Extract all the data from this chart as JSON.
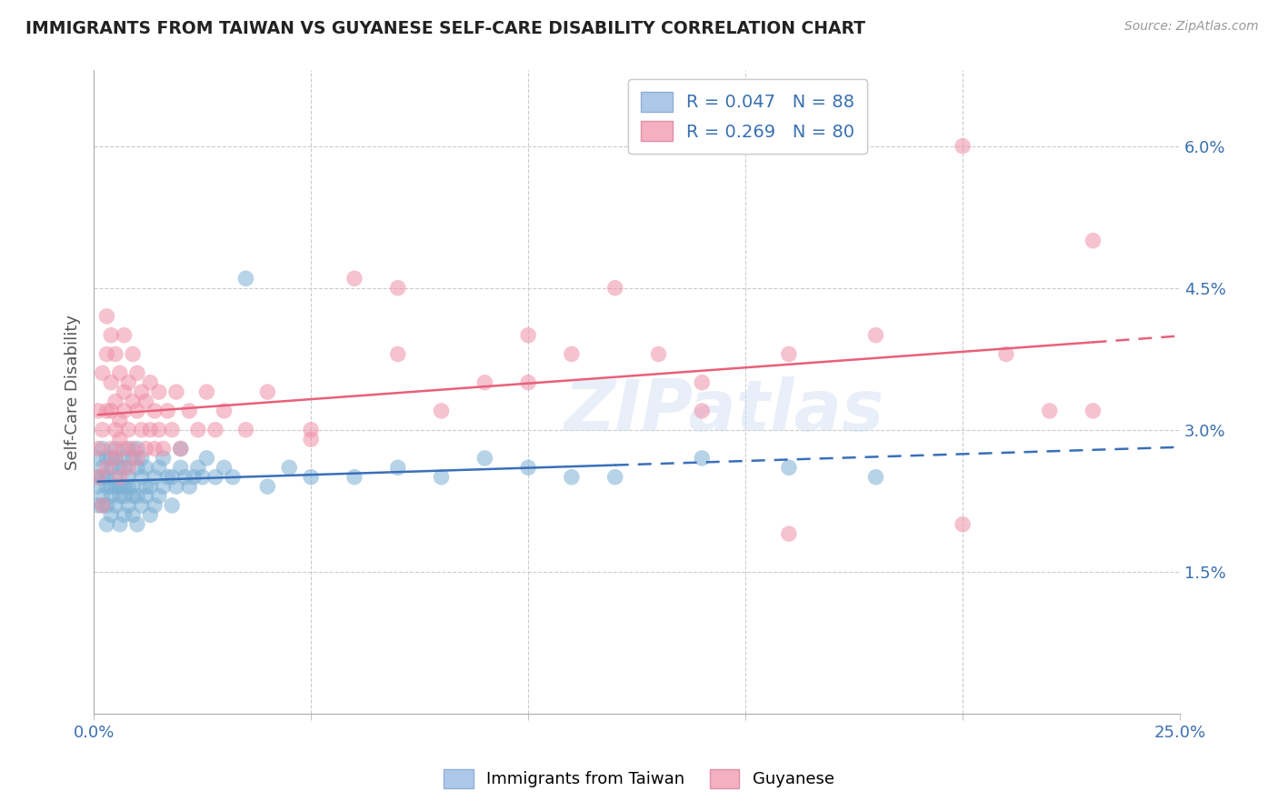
{
  "title": "IMMIGRANTS FROM TAIWAN VS GUYANESE SELF-CARE DISABILITY CORRELATION CHART",
  "source": "Source: ZipAtlas.com",
  "ylabel": "Self-Care Disability",
  "xmin": 0.0,
  "xmax": 0.25,
  "ymin": 0.0,
  "ymax": 0.068,
  "ytick_positions": [
    0.015,
    0.03,
    0.045,
    0.06
  ],
  "ytick_labels": [
    "1.5%",
    "3.0%",
    "4.5%",
    "6.0%"
  ],
  "xtick_positions": [
    0.0,
    0.05,
    0.1,
    0.15,
    0.2,
    0.25
  ],
  "xtick_labels": [
    "0.0%",
    "",
    "",
    "",
    "",
    "25.0%"
  ],
  "blue_scatter_color": "#7bafd4",
  "pink_scatter_color": "#f090a8",
  "blue_line_color": "#3a6fba",
  "pink_line_color": "#e8607a",
  "watermark": "ZIPatlas",
  "taiwan_N": 88,
  "taiwan_R": 0.047,
  "guyanese_N": 80,
  "guyanese_R": 0.269,
  "taiwan_x": [
    0.001,
    0.001,
    0.001,
    0.001,
    0.002,
    0.002,
    0.002,
    0.002,
    0.002,
    0.003,
    0.003,
    0.003,
    0.003,
    0.003,
    0.004,
    0.004,
    0.004,
    0.004,
    0.004,
    0.005,
    0.005,
    0.005,
    0.005,
    0.005,
    0.006,
    0.006,
    0.006,
    0.006,
    0.007,
    0.007,
    0.007,
    0.007,
    0.007,
    0.008,
    0.008,
    0.008,
    0.008,
    0.009,
    0.009,
    0.009,
    0.009,
    0.01,
    0.01,
    0.01,
    0.01,
    0.011,
    0.011,
    0.011,
    0.012,
    0.012,
    0.012,
    0.013,
    0.013,
    0.014,
    0.014,
    0.015,
    0.015,
    0.016,
    0.016,
    0.017,
    0.018,
    0.018,
    0.019,
    0.02,
    0.02,
    0.021,
    0.022,
    0.023,
    0.024,
    0.025,
    0.026,
    0.028,
    0.03,
    0.032,
    0.035,
    0.04,
    0.045,
    0.05,
    0.06,
    0.07,
    0.08,
    0.09,
    0.1,
    0.11,
    0.12,
    0.14,
    0.16,
    0.18
  ],
  "taiwan_y": [
    0.025,
    0.022,
    0.027,
    0.024,
    0.023,
    0.026,
    0.028,
    0.022,
    0.025,
    0.02,
    0.024,
    0.027,
    0.022,
    0.025,
    0.021,
    0.024,
    0.027,
    0.023,
    0.026,
    0.022,
    0.025,
    0.028,
    0.024,
    0.027,
    0.02,
    0.023,
    0.026,
    0.024,
    0.021,
    0.024,
    0.027,
    0.023,
    0.026,
    0.022,
    0.025,
    0.028,
    0.024,
    0.021,
    0.024,
    0.027,
    0.023,
    0.02,
    0.023,
    0.026,
    0.028,
    0.022,
    0.025,
    0.027,
    0.023,
    0.026,
    0.024,
    0.021,
    0.024,
    0.022,
    0.025,
    0.023,
    0.026,
    0.024,
    0.027,
    0.025,
    0.022,
    0.025,
    0.024,
    0.026,
    0.028,
    0.025,
    0.024,
    0.025,
    0.026,
    0.025,
    0.027,
    0.025,
    0.026,
    0.025,
    0.046,
    0.024,
    0.026,
    0.025,
    0.025,
    0.026,
    0.025,
    0.027,
    0.026,
    0.025,
    0.025,
    0.027,
    0.026,
    0.025
  ],
  "guyanese_x": [
    0.001,
    0.001,
    0.001,
    0.002,
    0.002,
    0.002,
    0.003,
    0.003,
    0.003,
    0.003,
    0.004,
    0.004,
    0.004,
    0.004,
    0.005,
    0.005,
    0.005,
    0.005,
    0.006,
    0.006,
    0.006,
    0.006,
    0.007,
    0.007,
    0.007,
    0.007,
    0.008,
    0.008,
    0.008,
    0.009,
    0.009,
    0.009,
    0.01,
    0.01,
    0.01,
    0.011,
    0.011,
    0.012,
    0.012,
    0.013,
    0.013,
    0.014,
    0.014,
    0.015,
    0.015,
    0.016,
    0.017,
    0.018,
    0.019,
    0.02,
    0.022,
    0.024,
    0.026,
    0.028,
    0.03,
    0.035,
    0.04,
    0.05,
    0.06,
    0.07,
    0.08,
    0.09,
    0.1,
    0.11,
    0.12,
    0.13,
    0.14,
    0.16,
    0.18,
    0.2,
    0.21,
    0.22,
    0.23,
    0.05,
    0.07,
    0.1,
    0.14,
    0.16,
    0.2,
    0.23
  ],
  "guyanese_y": [
    0.028,
    0.032,
    0.025,
    0.036,
    0.03,
    0.022,
    0.038,
    0.032,
    0.026,
    0.042,
    0.035,
    0.028,
    0.032,
    0.04,
    0.027,
    0.033,
    0.038,
    0.03,
    0.025,
    0.031,
    0.036,
    0.029,
    0.034,
    0.028,
    0.032,
    0.04,
    0.026,
    0.03,
    0.035,
    0.028,
    0.033,
    0.038,
    0.027,
    0.032,
    0.036,
    0.03,
    0.034,
    0.028,
    0.033,
    0.03,
    0.035,
    0.028,
    0.032,
    0.03,
    0.034,
    0.028,
    0.032,
    0.03,
    0.034,
    0.028,
    0.032,
    0.03,
    0.034,
    0.03,
    0.032,
    0.03,
    0.034,
    0.03,
    0.046,
    0.038,
    0.032,
    0.035,
    0.04,
    0.038,
    0.045,
    0.038,
    0.032,
    0.038,
    0.04,
    0.06,
    0.038,
    0.032,
    0.05,
    0.029,
    0.045,
    0.035,
    0.035,
    0.019,
    0.02,
    0.032
  ]
}
